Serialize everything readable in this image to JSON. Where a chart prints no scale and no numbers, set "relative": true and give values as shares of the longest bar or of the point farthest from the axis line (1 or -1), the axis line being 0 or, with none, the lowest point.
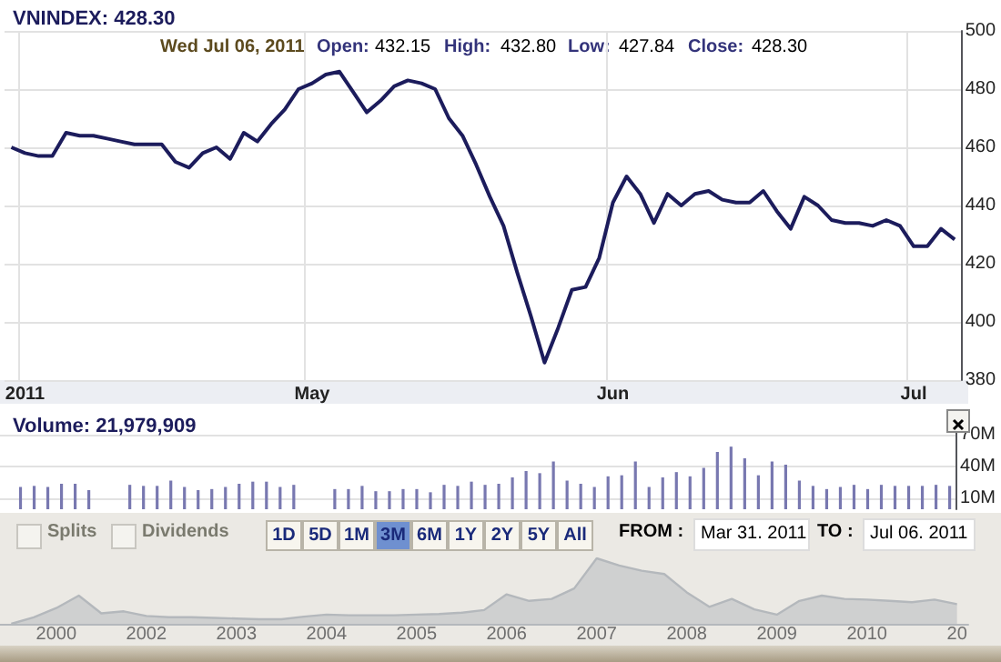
{
  "chart_data": [
    {
      "type": "line",
      "title": "VNINDEX: 428.30",
      "annotations": [
        "Wed Jul 06, 2011",
        "Open:",
        "432.15",
        "High:",
        "432.80",
        "Low:",
        "427.84",
        "Close:",
        "428.30"
      ],
      "categories": [
        null,
        "2011",
        null,
        null,
        null,
        null,
        null,
        null,
        null,
        null,
        null,
        null,
        null,
        null,
        null,
        null,
        null,
        null,
        null,
        null,
        null,
        null,
        "May",
        null,
        null,
        null,
        null,
        null,
        null,
        null,
        null,
        null,
        null,
        null,
        null,
        null,
        null,
        null,
        null,
        null,
        null,
        null,
        null,
        null,
        "Jun",
        null,
        null,
        null,
        null,
        null,
        null,
        null,
        null,
        null,
        null,
        null,
        null,
        null,
        null,
        null,
        null,
        null,
        null,
        null,
        null,
        null,
        "Jul",
        null,
        null,
        null
      ],
      "values": [
        460,
        458,
        457,
        457,
        465,
        464,
        464,
        463,
        462,
        461,
        461,
        461,
        455,
        453,
        458,
        460,
        456,
        465,
        462,
        468,
        473,
        480,
        482,
        485,
        486,
        479,
        472,
        476,
        481,
        483,
        482,
        480,
        470,
        464,
        454,
        443,
        433,
        417,
        402,
        386,
        398,
        411,
        412,
        422,
        441,
        450,
        444,
        434,
        444,
        440,
        444,
        445,
        442,
        441,
        441,
        445,
        438,
        432,
        443,
        440,
        435,
        434,
        434,
        433,
        435,
        433,
        426,
        426,
        432,
        428.3
      ],
      "color": "#1c1c5c",
      "ylim": [
        380,
        500
      ],
      "yticks": [
        380,
        400,
        420,
        440,
        460,
        480,
        500
      ],
      "grid": true
    },
    {
      "type": "bar",
      "title": "Volume: 21,979,909",
      "categories": [
        null,
        null,
        null,
        null,
        null,
        null,
        null,
        null,
        null,
        null,
        null,
        null,
        null,
        null,
        null,
        null,
        null,
        null,
        null,
        null,
        null,
        null,
        null,
        null,
        null,
        null,
        null,
        null,
        null,
        null,
        null,
        null,
        null,
        null,
        null,
        null,
        null,
        null,
        null,
        null,
        null,
        null,
        null,
        null,
        null,
        null,
        null,
        null,
        null,
        null,
        null,
        null,
        null,
        null,
        null,
        null,
        null,
        null,
        null,
        null,
        null,
        null,
        null,
        null,
        null,
        null,
        null,
        null,
        null,
        null
      ],
      "values": [
        null,
        21,
        22,
        21,
        24,
        24,
        18,
        null,
        null,
        23,
        22,
        22,
        27,
        21,
        18,
        19,
        21,
        24,
        26,
        26,
        21,
        23,
        null,
        null,
        19,
        19,
        22,
        17,
        17,
        19,
        19,
        16,
        23,
        22,
        26,
        23,
        24,
        30,
        36,
        34,
        45,
        27,
        24,
        21,
        31,
        32,
        45,
        21,
        30,
        35,
        31,
        39,
        54,
        59,
        48,
        32,
        45,
        42,
        27,
        22,
        19,
        21,
        23,
        19,
        23,
        22,
        22,
        22,
        23,
        22
      ],
      "color": "#7878b0",
      "ylim": [
        0,
        72
      ],
      "yticks": [
        {
          "value": 10,
          "label": "10M"
        },
        {
          "value": 40,
          "label": "40M"
        },
        {
          "value": 70,
          "label": "70M"
        }
      ],
      "grid": true,
      "tick_labels": "y"
    },
    {
      "type": "area",
      "relative": true,
      "tick_labels": "x",
      "annotations": [
        "Splits",
        "Dividends",
        "1D",
        "5D",
        "1M",
        "3M",
        "6M",
        "1Y",
        "2Y",
        "5Y",
        "All",
        "FROM :",
        "Mar 31. 2011",
        "TO :",
        "Jul 06. 2011"
      ],
      "categories": [
        null,
        null,
        "2000",
        null,
        null,
        null,
        "2002",
        null,
        null,
        null,
        "2003",
        null,
        null,
        null,
        "2004",
        null,
        null,
        null,
        "2005",
        null,
        null,
        null,
        "2006",
        null,
        null,
        null,
        "2007",
        null,
        null,
        null,
        "2008",
        null,
        null,
        null,
        "2009",
        null,
        null,
        null,
        "2010",
        null,
        null,
        null,
        "20"
      ],
      "values": [
        0,
        0.1,
        0.24,
        0.43,
        0.16,
        0.19,
        0.12,
        0.1,
        0.1,
        0.09,
        0.08,
        0.07,
        0.07,
        0.11,
        0.14,
        0.13,
        0.13,
        0.13,
        0.14,
        0.15,
        0.17,
        0.21,
        0.45,
        0.35,
        0.38,
        0.54,
        1,
        0.89,
        0.81,
        0.76,
        0.48,
        0.26,
        0.38,
        0.22,
        0.14,
        0.35,
        0.43,
        0.38,
        0.37,
        0.35,
        0.33,
        0.37,
        0.3
      ],
      "color": "#b4b8bc"
    }
  ]
}
